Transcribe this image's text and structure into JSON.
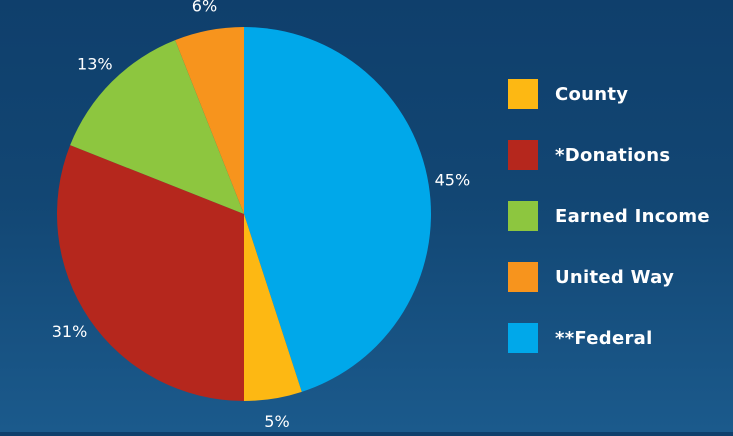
{
  "chart_data": {
    "type": "pie",
    "slices": [
      {
        "label": "**Federal",
        "value": 45,
        "display": "45%",
        "color": "#00a8ea"
      },
      {
        "label": "County",
        "value": 5,
        "display": "5%",
        "color": "#fdb813"
      },
      {
        "label": "*Donations",
        "value": 31,
        "display": "31%",
        "color": "#b5271d"
      },
      {
        "label": "Earned Income",
        "value": 13,
        "display": "13%",
        "color": "#8dc63f"
      },
      {
        "label": "United Way",
        "value": 6,
        "display": "6%",
        "color": "#f7941d"
      }
    ],
    "legend_position": "right",
    "legend": [
      {
        "label": "County",
        "color": "#fdb813"
      },
      {
        "label": "*Donations",
        "color": "#b5271d"
      },
      {
        "label": "Earned Income",
        "color": "#8dc63f"
      },
      {
        "label": "United Way",
        "color": "#f7941d"
      },
      {
        "label": "**Federal",
        "color": "#00a8ea"
      }
    ]
  }
}
